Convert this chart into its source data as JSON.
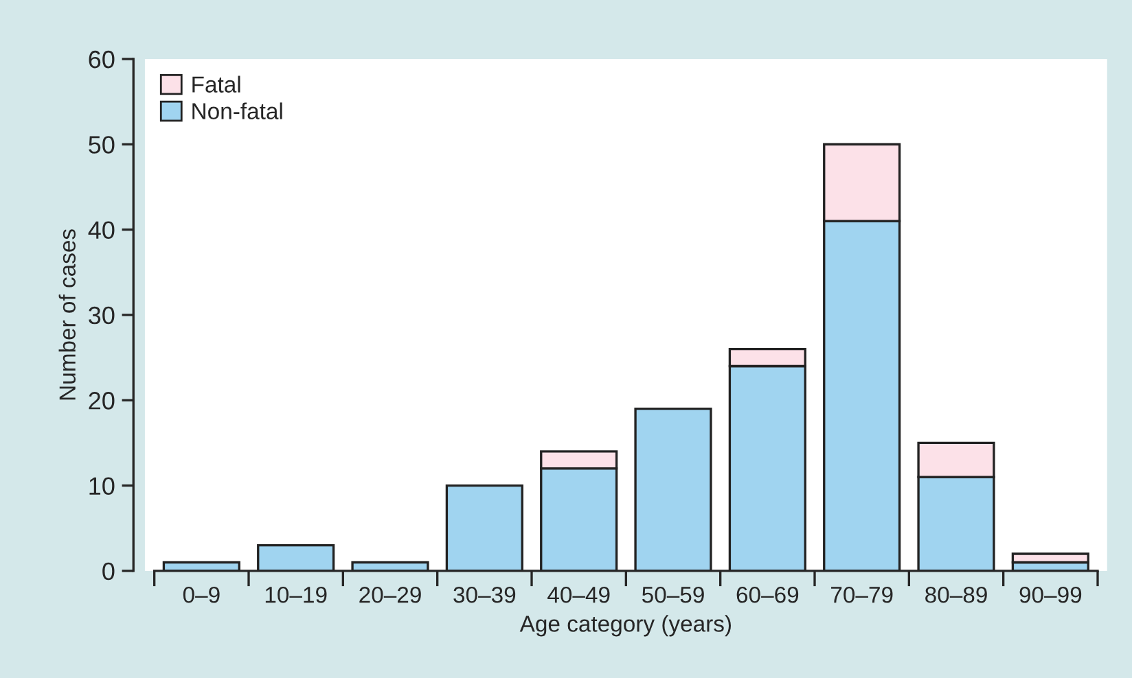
{
  "chart_data": {
    "type": "bar",
    "stacked": true,
    "xlabel": "Age category (years)",
    "ylabel": "Number of cases",
    "categories": [
      "0–9",
      "10–19",
      "20–29",
      "30–39",
      "40–49",
      "50–59",
      "60–69",
      "70–79",
      "80–89",
      "90–99"
    ],
    "series": [
      {
        "name": "Non-fatal",
        "color": "#a0d4f0",
        "values": [
          1,
          3,
          1,
          10,
          12,
          19,
          24,
          41,
          11,
          1
        ]
      },
      {
        "name": "Fatal",
        "color": "#fce1e8",
        "values": [
          null,
          null,
          null,
          null,
          2,
          null,
          2,
          9,
          4,
          1
        ]
      }
    ],
    "ylim": [
      0,
      60
    ],
    "yticks": [
      0,
      10,
      20,
      30,
      40,
      50,
      60
    ],
    "grid": false,
    "legend": "top left"
  }
}
